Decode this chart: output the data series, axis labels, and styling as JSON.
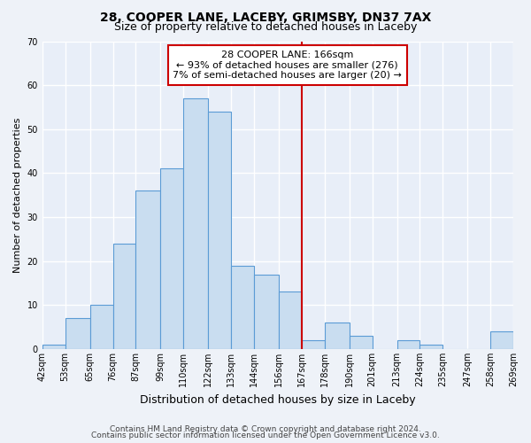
{
  "title": "28, COOPER LANE, LACEBY, GRIMSBY, DN37 7AX",
  "subtitle": "Size of property relative to detached houses in Laceby",
  "xlabel": "Distribution of detached houses by size in Laceby",
  "ylabel": "Number of detached properties",
  "bin_edges": [
    42,
    53,
    65,
    76,
    87,
    99,
    110,
    122,
    133,
    144,
    156,
    167,
    178,
    190,
    201,
    213,
    224,
    235,
    247,
    258,
    269
  ],
  "bin_heights": [
    1,
    7,
    10,
    24,
    36,
    41,
    57,
    54,
    19,
    17,
    13,
    2,
    6,
    3,
    0,
    2,
    1,
    0,
    0,
    4
  ],
  "bar_color": "#c9ddf0",
  "bar_edge_color": "#5b9bd5",
  "vline_x": 167,
  "vline_color": "#cc0000",
  "annotation_text": "28 COOPER LANE: 166sqm\n← 93% of detached houses are smaller (276)\n7% of semi-detached houses are larger (20) →",
  "annotation_box_color": "#ffffff",
  "annotation_box_edge": "#cc0000",
  "ylim": [
    0,
    70
  ],
  "tick_labels": [
    "42sqm",
    "53sqm",
    "65sqm",
    "76sqm",
    "87sqm",
    "99sqm",
    "110sqm",
    "122sqm",
    "133sqm",
    "144sqm",
    "156sqm",
    "167sqm",
    "178sqm",
    "190sqm",
    "201sqm",
    "213sqm",
    "224sqm",
    "235sqm",
    "247sqm",
    "258sqm",
    "269sqm"
  ],
  "footer1": "Contains HM Land Registry data © Crown copyright and database right 2024.",
  "footer2": "Contains public sector information licensed under the Open Government Licence v3.0.",
  "bg_color": "#eef2f8",
  "plot_bg_color": "#e8eef8",
  "grid_color": "#ffffff",
  "title_fontsize": 10,
  "subtitle_fontsize": 9,
  "xlabel_fontsize": 9,
  "ylabel_fontsize": 8,
  "tick_fontsize": 7,
  "annotation_fontsize": 8,
  "footer_fontsize": 6.5
}
